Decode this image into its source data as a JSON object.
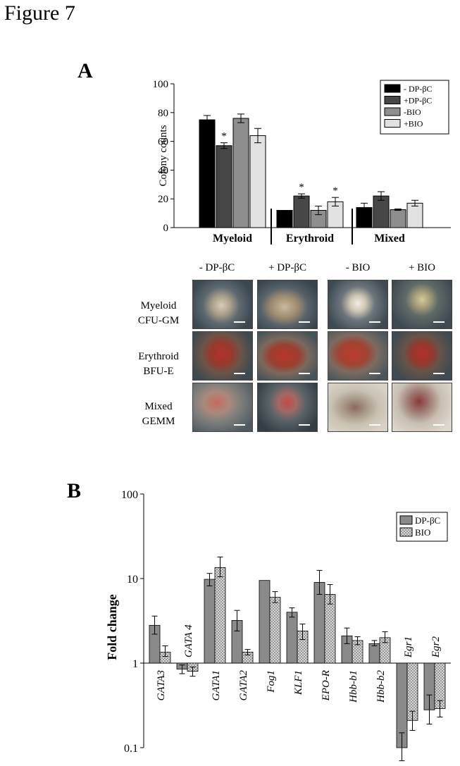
{
  "figure_title": "Figure 7",
  "panel_a": {
    "letter": "A",
    "legend_entries": [
      "- DP-βC",
      "+DP-βC",
      "-BIO",
      "+BIO"
    ],
    "legend_colors": [
      "#000000",
      "#474747",
      "#8e8e8e",
      "#e1e1e1"
    ],
    "micrograph_grid": {
      "column_headers": [
        "- DP-βC",
        "+ DP-βC",
        "- BIO",
        "+ BIO"
      ],
      "row_labels": [
        {
          "line1": "Myeloid",
          "line2": "CFU-GM"
        },
        {
          "line1": "Erythroid",
          "line2": "BFU-E"
        },
        {
          "line1": "Mixed",
          "line2": "GEMM"
        }
      ]
    }
  },
  "panel_b": {
    "letter": "B",
    "legend_entries": [
      "DP-βC",
      "BIO"
    ],
    "legend_colors": [
      "#8a8a8a",
      "#cfcfcf"
    ]
  },
  "chart_data": [
    {
      "type": "bar",
      "title": "",
      "xlabel": "",
      "ylabel": "Colony counts",
      "ylim": [
        0,
        100
      ],
      "yticks": [
        "0",
        "20",
        "40",
        "60",
        "80",
        "100"
      ],
      "grid": false,
      "legend_position": "top-right",
      "categories": [
        "Myeloid",
        "Erythroid",
        "Mixed"
      ],
      "series": [
        {
          "name": "- DP-βC",
          "values": [
            75,
            12,
            14
          ],
          "errors": [
            3,
            0,
            3
          ]
        },
        {
          "name": "+DP-βC",
          "values": [
            57,
            22,
            22
          ],
          "errors": [
            2,
            1.5,
            3
          ]
        },
        {
          "name": "-BIO",
          "values": [
            76,
            12,
            12.5
          ],
          "errors": [
            3,
            3,
            0.5
          ]
        },
        {
          "name": "+BIO",
          "values": [
            64,
            18,
            17
          ],
          "errors": [
            5,
            3,
            2
          ]
        }
      ],
      "annotations": [
        {
          "text": "*",
          "category": "Myeloid",
          "series": "+DP-βC"
        },
        {
          "text": "*",
          "category": "Erythroid",
          "series": "+DP-βC"
        },
        {
          "text": "*",
          "category": "Erythroid",
          "series": "+BIO"
        }
      ]
    },
    {
      "type": "bar",
      "title": "",
      "xlabel": "",
      "ylabel": "Fold change",
      "yscale": "log",
      "ylim": [
        0.1,
        100
      ],
      "yticks": [
        "0.1",
        "1",
        "10",
        "100"
      ],
      "baseline": 1,
      "grid": false,
      "legend_position": "top-right",
      "categories": [
        "GATA3",
        "GATA 4",
        "GATA1",
        "GATA2",
        "Fog1",
        "KLF1",
        "EPO-R",
        "Hbb-b1",
        "Hbb-b2",
        "Egr1",
        "Egr2"
      ],
      "series": [
        {
          "name": "DP-βC",
          "values": [
            2.8,
            0.85,
            9.8,
            3.2,
            9.5,
            4.0,
            9.0,
            2.1,
            1.7,
            0.1,
            0.28
          ],
          "err_low": [
            2.2,
            0.75,
            8.2,
            2.4,
            9.5,
            3.5,
            6.5,
            1.7,
            1.6,
            0.07,
            0.19
          ],
          "err_high": [
            3.6,
            0.95,
            11.5,
            4.2,
            9.5,
            4.5,
            12.5,
            2.6,
            1.85,
            0.15,
            0.42
          ]
        },
        {
          "name": "BIO",
          "values": [
            1.35,
            0.8,
            13.5,
            1.35,
            6.0,
            2.4,
            6.5,
            1.85,
            2.0,
            0.21,
            0.29
          ],
          "err_low": [
            1.2,
            0.7,
            10.5,
            1.25,
            5.2,
            1.9,
            5.0,
            1.65,
            1.75,
            0.16,
            0.23
          ],
          "err_high": [
            1.6,
            0.9,
            18.0,
            1.45,
            7.0,
            2.9,
            8.5,
            2.05,
            2.35,
            0.27,
            0.36
          ]
        }
      ]
    }
  ]
}
